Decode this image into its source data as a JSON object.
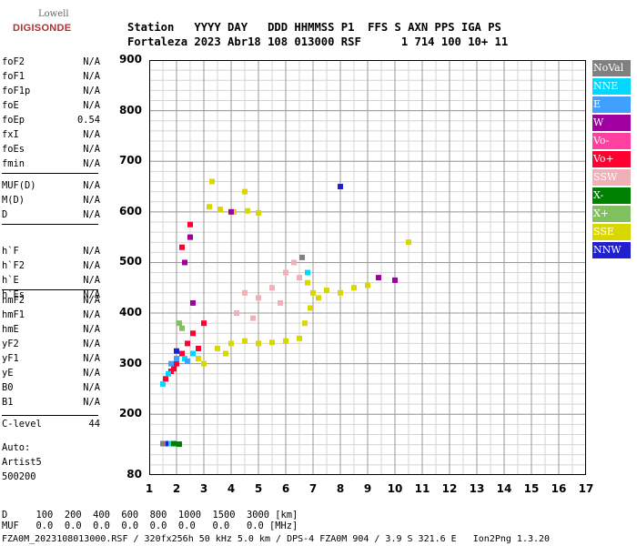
{
  "logo": {
    "line1": "Lowell",
    "line2": "DIGISONDE"
  },
  "header": {
    "labels": "Station   YYYY DAY   DDD HHMMSS P1  FFS S AXN PPS IGA PS",
    "values": "Fortaleza 2023 Abr18 108 013000 RSF      1 714 100 10+ 11"
  },
  "params_group1": [
    {
      "key": "foF2",
      "value": "N/A"
    },
    {
      "key": "foF1",
      "value": "N/A"
    },
    {
      "key": "foF1p",
      "value": "N/A"
    },
    {
      "key": "foE",
      "value": "N/A"
    },
    {
      "key": "foEp",
      "value": "0.54"
    },
    {
      "key": "fxI",
      "value": "N/A"
    },
    {
      "key": "foEs",
      "value": "N/A"
    },
    {
      "key": "fmin",
      "value": "N/A"
    }
  ],
  "params_group2": [
    {
      "key": "MUF(D)",
      "value": "N/A"
    },
    {
      "key": "M(D)",
      "value": "N/A"
    },
    {
      "key": "D",
      "value": "N/A"
    }
  ],
  "params_group3": [
    {
      "key": "h`F",
      "value": "N/A"
    },
    {
      "key": "h`F2",
      "value": "N/A"
    },
    {
      "key": "h`E",
      "value": "N/A"
    },
    {
      "key": "h`Es",
      "value": "N/A"
    }
  ],
  "params_group4": [
    {
      "key": "hmF2",
      "value": "N/A"
    },
    {
      "key": "hmF1",
      "value": "N/A"
    },
    {
      "key": "hmE",
      "value": "N/A"
    },
    {
      "key": "yF2",
      "value": "N/A"
    },
    {
      "key": "yF1",
      "value": "N/A"
    },
    {
      "key": "yE",
      "value": "N/A"
    },
    {
      "key": "B0",
      "value": "N/A"
    },
    {
      "key": "B1",
      "value": "N/A"
    }
  ],
  "clevel": {
    "key": "C-level",
    "value": "44"
  },
  "auto": {
    "line1": "Auto:",
    "line2": "Artist5",
    "line3": "500200"
  },
  "legend": [
    {
      "label": "NoVal",
      "color": "#808080"
    },
    {
      "label": "NNE",
      "color": "#00d8ff"
    },
    {
      "label": "E",
      "color": "#3fa0ff"
    },
    {
      "label": "W",
      "color": "#a000a0"
    },
    {
      "label": "Vo-",
      "color": "#ff40a0"
    },
    {
      "label": "Vo+",
      "color": "#ff0030"
    },
    {
      "label": "SSW",
      "color": "#f0b0b8"
    },
    {
      "label": "X-",
      "color": "#008000"
    },
    {
      "label": "X+",
      "color": "#80c060"
    },
    {
      "label": "SSE",
      "color": "#d8d800"
    },
    {
      "label": "NNW",
      "color": "#2020d0"
    }
  ],
  "chart_data": {
    "type": "scatter",
    "xlim": [
      1,
      17
    ],
    "ylim": [
      80,
      900
    ],
    "x_ticks": [
      "1",
      "2",
      "3",
      "4",
      "5",
      "6",
      "7",
      "8",
      "9",
      "10",
      "11",
      "12",
      "13",
      "14",
      "15",
      "16",
      "17"
    ],
    "y_ticks": [
      "80",
      "200",
      "300",
      "400",
      "500",
      "600",
      "700",
      "800",
      "900"
    ],
    "grid": true,
    "series": [
      {
        "name": "SSE",
        "color": "#d8d800",
        "points": [
          [
            3.2,
            610
          ],
          [
            3.6,
            605
          ],
          [
            4.1,
            600
          ],
          [
            4.6,
            602
          ],
          [
            5.0,
            598
          ],
          [
            3.3,
            660
          ],
          [
            4.5,
            640
          ],
          [
            3.0,
            300
          ],
          [
            3.5,
            330
          ],
          [
            4.0,
            340
          ],
          [
            4.5,
            345
          ],
          [
            5.0,
            340
          ],
          [
            5.5,
            342
          ],
          [
            6.0,
            345
          ],
          [
            6.5,
            350
          ],
          [
            6.7,
            380
          ],
          [
            6.9,
            410
          ],
          [
            7.0,
            440
          ],
          [
            7.5,
            445
          ],
          [
            8.0,
            440
          ],
          [
            8.5,
            450
          ],
          [
            9.0,
            455
          ],
          [
            3.8,
            320
          ],
          [
            2.8,
            310
          ],
          [
            6.8,
            460
          ],
          [
            7.2,
            430
          ],
          [
            10.5,
            540
          ]
        ]
      },
      {
        "name": "Vo+",
        "color": "#ff0030",
        "points": [
          [
            1.6,
            270
          ],
          [
            1.8,
            285
          ],
          [
            2.0,
            300
          ],
          [
            2.2,
            320
          ],
          [
            2.4,
            340
          ],
          [
            2.6,
            360
          ],
          [
            2.8,
            330
          ],
          [
            2.5,
            575
          ],
          [
            2.2,
            530
          ],
          [
            3.0,
            380
          ],
          [
            1.9,
            290
          ]
        ]
      },
      {
        "name": "SSW",
        "color": "#f0b0b8",
        "points": [
          [
            4.5,
            440
          ],
          [
            5.0,
            430
          ],
          [
            5.5,
            450
          ],
          [
            6.0,
            480
          ],
          [
            6.3,
            500
          ],
          [
            4.8,
            390
          ],
          [
            5.8,
            420
          ],
          [
            6.5,
            470
          ],
          [
            4.2,
            400
          ]
        ]
      },
      {
        "name": "NNE",
        "color": "#00d8ff",
        "points": [
          [
            1.5,
            260
          ],
          [
            1.7,
            280
          ],
          [
            2.3,
            310
          ],
          [
            2.6,
            320
          ],
          [
            6.8,
            480
          ],
          [
            1.7,
            142
          ]
        ]
      },
      {
        "name": "E",
        "color": "#3fa0ff",
        "points": [
          [
            1.8,
            300
          ],
          [
            2.0,
            310
          ],
          [
            2.4,
            305
          ]
        ]
      },
      {
        "name": "W",
        "color": "#a000a0",
        "points": [
          [
            2.3,
            500
          ],
          [
            2.5,
            550
          ],
          [
            4.0,
            600
          ],
          [
            2.6,
            420
          ],
          [
            8.0,
            650
          ],
          [
            9.4,
            470
          ],
          [
            10.0,
            465
          ]
        ]
      },
      {
        "name": "X-",
        "color": "#008000",
        "points": [
          [
            1.9,
            142
          ],
          [
            2.1,
            141
          ]
        ]
      },
      {
        "name": "X+",
        "color": "#80c060",
        "points": [
          [
            2.2,
            370
          ],
          [
            2.1,
            380
          ]
        ]
      },
      {
        "name": "NNW",
        "color": "#2020d0",
        "points": [
          [
            1.6,
            142
          ],
          [
            8.0,
            650
          ],
          [
            2.0,
            325
          ]
        ]
      },
      {
        "name": "NoVal",
        "color": "#808080",
        "points": [
          [
            1.5,
            142
          ],
          [
            6.6,
            510
          ]
        ]
      }
    ]
  },
  "footer": {
    "line1": "D     100  200  400  600  800  1000  1500  3000 [km]",
    "line2": "MUF   0.0  0.0  0.0  0.0  0.0  0.0   0.0   0.0 [MHz]",
    "line3": "FZA0M_2023108013000.RSF / 320fx256h 50 kHz 5.0 km / DPS-4 FZA0M 904 / 3.9 S 321.6 E   Ion2Png 1.3.20"
  }
}
